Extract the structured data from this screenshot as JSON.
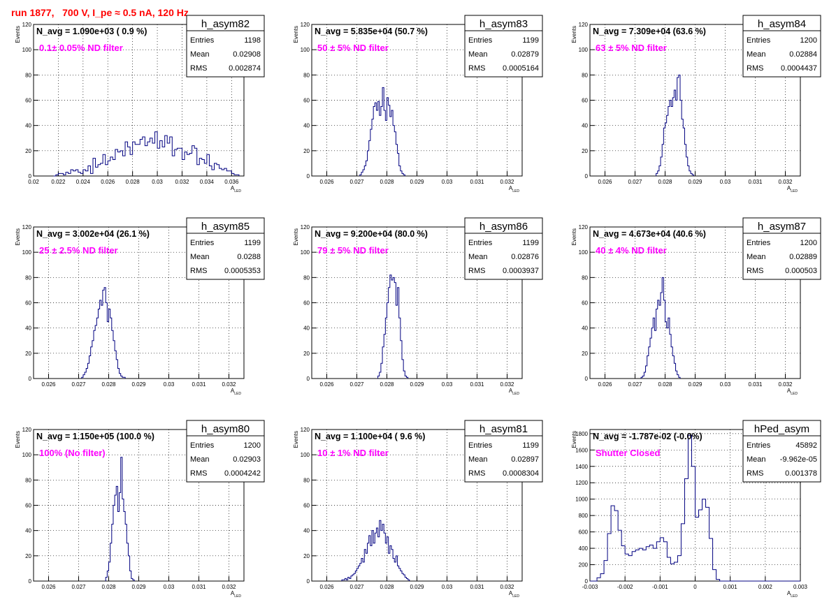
{
  "canvas_title": "run 1877,   700 V, I_pe ≈ 0.5 nA, 120 Hz",
  "colors": {
    "title": "#ff0000",
    "annotation": "#ff00ff",
    "histogram": "#000080",
    "grid": "#000000",
    "frame": "#000000"
  },
  "chart_data": [
    {
      "type": "bar",
      "hist_name": "h_asym82",
      "stats": {
        "entries_label": "Entries",
        "entries": "1198",
        "mean_label": "Mean",
        "mean": "0.02908",
        "rms_label": "RMS",
        "rms": "0.002874"
      },
      "navg_text": "N_avg = 1.090e+03 ( 0.9 %)",
      "annotation": "0.1± 0.05% ND filter",
      "ylabel": "Events",
      "xlabel_main": "A",
      "xlabel_sub": "LED",
      "xlim": [
        0.02,
        0.037
      ],
      "ylim": [
        0,
        120
      ],
      "xticks": [
        0.02,
        0.022,
        0.024,
        0.026,
        0.028,
        0.03,
        0.032,
        0.034,
        0.036
      ],
      "xtick_labels": [
        "0.02",
        "0.022",
        "0.024",
        "0.026",
        "0.028",
        "0.03",
        "0.032",
        "0.034",
        "0.036"
      ],
      "yticks": [
        0,
        20,
        40,
        60,
        80,
        100,
        120
      ],
      "ytick_labels": [
        "0",
        "20",
        "40",
        "60",
        "80",
        "100",
        "120"
      ],
      "grid": true,
      "bin_start": 0.0216,
      "bin_width": 0.0002,
      "values": [
        0,
        1,
        2,
        2,
        1,
        3,
        2,
        5,
        4,
        5,
        3,
        2,
        5,
        4,
        8,
        2,
        14,
        7,
        9,
        10,
        17,
        9,
        12,
        15,
        13,
        21,
        19,
        20,
        16,
        27,
        23,
        17,
        27,
        25,
        25,
        29,
        31,
        24,
        27,
        30,
        26,
        35,
        22,
        28,
        23,
        32,
        26,
        31,
        16,
        21,
        22,
        22,
        13,
        19,
        17,
        18,
        24,
        22,
        9,
        14,
        13,
        10,
        17,
        8,
        5,
        10,
        9,
        6,
        5,
        6,
        4,
        4,
        2,
        1,
        1
      ]
    },
    {
      "type": "bar",
      "hist_name": "h_asym83",
      "stats": {
        "entries_label": "Entries",
        "entries": "1199",
        "mean_label": "Mean",
        "mean": "0.02879",
        "rms_label": "RMS",
        "rms": "0.0005164"
      },
      "navg_text": "N_avg = 5.835e+04 (50.7 %)",
      "annotation": "50 ± 5% ND filter",
      "ylabel": "Events",
      "xlabel_main": "A",
      "xlabel_sub": "LED",
      "xlim": [
        0.0255,
        0.0325
      ],
      "ylim": [
        0,
        120
      ],
      "xticks": [
        0.026,
        0.027,
        0.028,
        0.029,
        0.03,
        0.031,
        0.032
      ],
      "xtick_labels": [
        "0.026",
        "0.027",
        "0.028",
        "0.029",
        "0.03",
        "0.031",
        "0.032"
      ],
      "yticks": [
        0,
        20,
        40,
        60,
        80,
        100,
        120
      ],
      "ytick_labels": [
        "0",
        "20",
        "40",
        "60",
        "80",
        "100",
        "120"
      ],
      "grid": true,
      "bin_start": 0.0271,
      "bin_width": 5e-05,
      "values": [
        1,
        3,
        5,
        8,
        12,
        20,
        28,
        37,
        45,
        55,
        58,
        52,
        59,
        48,
        55,
        70,
        52,
        44,
        62,
        56,
        47,
        52,
        40,
        35,
        25,
        18,
        8,
        4,
        2,
        1
      ]
    },
    {
      "type": "bar",
      "hist_name": "h_asym84",
      "stats": {
        "entries_label": "Entries",
        "entries": "1200",
        "mean_label": "Mean",
        "mean": "0.02884",
        "rms_label": "RMS",
        "rms": "0.0004437"
      },
      "navg_text": "N_avg = 7.309e+04 (63.6 %)",
      "annotation": "63 ± 5% ND filter",
      "ylabel": "Events",
      "xlabel_main": "A",
      "xlabel_sub": "LED",
      "xlim": [
        0.0255,
        0.0325
      ],
      "ylim": [
        0,
        120
      ],
      "xticks": [
        0.026,
        0.027,
        0.028,
        0.029,
        0.03,
        0.031,
        0.032
      ],
      "xtick_labels": [
        "0.026",
        "0.027",
        "0.028",
        "0.029",
        "0.03",
        "0.031",
        "0.032"
      ],
      "yticks": [
        0,
        20,
        40,
        60,
        80,
        100,
        120
      ],
      "ytick_labels": [
        "0",
        "20",
        "40",
        "60",
        "80",
        "100",
        "120"
      ],
      "grid": true,
      "bin_start": 0.0277,
      "bin_width": 5e-05,
      "values": [
        2,
        4,
        8,
        15,
        25,
        38,
        42,
        48,
        55,
        60,
        55,
        62,
        68,
        60,
        78,
        80,
        60,
        45,
        38,
        25,
        15,
        8,
        4,
        2,
        1
      ]
    },
    {
      "type": "bar",
      "hist_name": "h_asym85",
      "stats": {
        "entries_label": "Entries",
        "entries": "1199",
        "mean_label": "Mean",
        "mean": "0.0288",
        "rms_label": "RMS",
        "rms": "0.0005353"
      },
      "navg_text": "N_avg = 3.002e+04 (26.1 %)",
      "annotation": "25 ± 2.5% ND filter",
      "ylabel": "Events",
      "xlabel_main": "A",
      "xlabel_sub": "LED",
      "xlim": [
        0.0255,
        0.0325
      ],
      "ylim": [
        0,
        120
      ],
      "xticks": [
        0.026,
        0.027,
        0.028,
        0.029,
        0.03,
        0.031,
        0.032
      ],
      "xtick_labels": [
        "0.026",
        "0.027",
        "0.028",
        "0.029",
        "0.03",
        "0.031",
        "0.032"
      ],
      "yticks": [
        0,
        20,
        40,
        60,
        80,
        100,
        120
      ],
      "ytick_labels": [
        "0",
        "20",
        "40",
        "60",
        "80",
        "100",
        "120"
      ],
      "grid": true,
      "bin_start": 0.0271,
      "bin_width": 5e-05,
      "values": [
        1,
        3,
        5,
        8,
        12,
        18,
        25,
        30,
        38,
        42,
        48,
        55,
        62,
        58,
        70,
        72,
        60,
        45,
        55,
        48,
        38,
        30,
        22,
        15,
        8,
        4,
        2,
        1,
        1
      ]
    },
    {
      "type": "bar",
      "hist_name": "h_asym86",
      "stats": {
        "entries_label": "Entries",
        "entries": "1199",
        "mean_label": "Mean",
        "mean": "0.02876",
        "rms_label": "RMS",
        "rms": "0.0003937"
      },
      "navg_text": "N_avg = 9.200e+04 (80.0 %)",
      "annotation": "79 ± 5% ND filter",
      "ylabel": "Events",
      "xlabel_main": "A",
      "xlabel_sub": "LED",
      "xlim": [
        0.0255,
        0.0325
      ],
      "ylim": [
        0,
        120
      ],
      "xticks": [
        0.026,
        0.027,
        0.028,
        0.029,
        0.03,
        0.031,
        0.032
      ],
      "xtick_labels": [
        "0.026",
        "0.027",
        "0.028",
        "0.029",
        "0.03",
        "0.031",
        "0.032"
      ],
      "yticks": [
        0,
        20,
        40,
        60,
        80,
        100,
        120
      ],
      "ytick_labels": [
        "0",
        "20",
        "40",
        "60",
        "80",
        "100",
        "120"
      ],
      "grid": true,
      "bin_start": 0.0277,
      "bin_width": 5e-05,
      "values": [
        2,
        5,
        12,
        25,
        35,
        48,
        60,
        72,
        82,
        78,
        80,
        76,
        58,
        72,
        48,
        30,
        15,
        6,
        2,
        1
      ]
    },
    {
      "type": "bar",
      "hist_name": "h_asym87",
      "stats": {
        "entries_label": "Entries",
        "entries": "1200",
        "mean_label": "Mean",
        "mean": "0.02889",
        "rms_label": "RMS",
        "rms": "0.000503"
      },
      "navg_text": "N_avg = 4.673e+04 (40.6 %)",
      "annotation": "40 ± 4% ND filter",
      "ylabel": "Events",
      "xlabel_main": "A",
      "xlabel_sub": "LED",
      "xlim": [
        0.0255,
        0.0325
      ],
      "ylim": [
        0,
        120
      ],
      "xticks": [
        0.026,
        0.027,
        0.028,
        0.029,
        0.03,
        0.031,
        0.032
      ],
      "xtick_labels": [
        "0.026",
        "0.027",
        "0.028",
        "0.029",
        "0.03",
        "0.031",
        "0.032"
      ],
      "yticks": [
        0,
        20,
        40,
        60,
        80,
        100,
        120
      ],
      "ytick_labels": [
        "0",
        "20",
        "40",
        "60",
        "80",
        "100",
        "120"
      ],
      "grid": true,
      "bin_start": 0.0272,
      "bin_width": 5e-05,
      "values": [
        1,
        2,
        5,
        10,
        18,
        25,
        32,
        40,
        48,
        38,
        55,
        62,
        58,
        68,
        80,
        62,
        45,
        40,
        48,
        35,
        25,
        18,
        12,
        6,
        3,
        1
      ]
    },
    {
      "type": "bar",
      "hist_name": "h_asym80",
      "stats": {
        "entries_label": "Entries",
        "entries": "1200",
        "mean_label": "Mean",
        "mean": "0.02903",
        "rms_label": "RMS",
        "rms": "0.0004242"
      },
      "navg_text": "N_avg = 1.150e+05 (100.0 %)",
      "annotation": "100% (No filter)",
      "ylabel": "Events",
      "xlabel_main": "A",
      "xlabel_sub": "LED",
      "xlim": [
        0.0255,
        0.0325
      ],
      "ylim": [
        0,
        120
      ],
      "xticks": [
        0.026,
        0.027,
        0.028,
        0.029,
        0.03,
        0.031,
        0.032
      ],
      "xtick_labels": [
        "0.026",
        "0.027",
        "0.028",
        "0.029",
        "0.03",
        "0.031",
        "0.032"
      ],
      "yticks": [
        0,
        20,
        40,
        60,
        80,
        100,
        120
      ],
      "ytick_labels": [
        "0",
        "20",
        "40",
        "60",
        "80",
        "100",
        "120"
      ],
      "grid": true,
      "bin_start": 0.0279,
      "bin_width": 5e-05,
      "values": [
        3,
        8,
        15,
        30,
        45,
        60,
        68,
        75,
        55,
        70,
        98,
        65,
        55,
        45,
        30,
        20,
        8,
        2,
        1
      ]
    },
    {
      "type": "bar",
      "hist_name": "h_asym81",
      "stats": {
        "entries_label": "Entries",
        "entries": "1199",
        "mean_label": "Mean",
        "mean": "0.02897",
        "rms_label": "RMS",
        "rms": "0.0008304"
      },
      "navg_text": "N_avg = 1.100e+04 ( 9.6 %)",
      "annotation": "10 ± 1% ND filter",
      "ylabel": "Events",
      "xlabel_main": "A",
      "xlabel_sub": "LED",
      "xlim": [
        0.0255,
        0.0325
      ],
      "ylim": [
        0,
        120
      ],
      "xticks": [
        0.026,
        0.027,
        0.028,
        0.029,
        0.03,
        0.031,
        0.032
      ],
      "xtick_labels": [
        "0.026",
        "0.027",
        "0.028",
        "0.029",
        "0.03",
        "0.031",
        "0.032"
      ],
      "yticks": [
        0,
        20,
        40,
        60,
        80,
        100,
        120
      ],
      "ytick_labels": [
        "0",
        "20",
        "40",
        "60",
        "80",
        "100",
        "120"
      ],
      "grid": true,
      "bin_start": 0.0265,
      "bin_width": 5e-05,
      "values": [
        1,
        1,
        2,
        1,
        3,
        2,
        4,
        5,
        6,
        8,
        10,
        12,
        14,
        18,
        15,
        25,
        22,
        30,
        36,
        28,
        40,
        30,
        38,
        42,
        35,
        48,
        40,
        45,
        38,
        30,
        35,
        22,
        28,
        25,
        18,
        15,
        20,
        12,
        10,
        8,
        6,
        5,
        3,
        2,
        1
      ]
    },
    {
      "type": "bar",
      "hist_name": "hPed_asym",
      "stats": {
        "entries_label": "Entries",
        "entries": "45892",
        "mean_label": "Mean",
        "mean": "-9.962e-05",
        "rms_label": "RMS",
        "rms": "0.001378"
      },
      "navg_text": "N_avg = -1.787e-02 (-0.0%)",
      "annotation": "Shutter Closed",
      "ylabel": "Events",
      "xlabel_main": "A",
      "xlabel_sub": "LED",
      "xlim": [
        -0.003,
        0.003
      ],
      "ylim": [
        0,
        1850
      ],
      "xticks": [
        -0.003,
        -0.002,
        -0.001,
        0,
        0.001,
        0.002,
        0.003
      ],
      "xtick_labels": [
        "-0.003",
        "-0.002",
        "-0.001",
        "0",
        "0.001",
        "0.002",
        "0.003"
      ],
      "yticks": [
        0,
        200,
        400,
        600,
        800,
        1000,
        1200,
        1400,
        1600,
        1800
      ],
      "ytick_labels": [
        "0",
        "200",
        "400",
        "600",
        "800",
        "1000",
        "1200",
        "1400",
        "1600",
        "1800"
      ],
      "grid": true,
      "bin_start": -0.003,
      "bin_width": 0.0001,
      "values": [
        0,
        0,
        40,
        90,
        250,
        580,
        920,
        860,
        620,
        430,
        330,
        310,
        360,
        380,
        400,
        380,
        420,
        440,
        400,
        480,
        530,
        480,
        290,
        210,
        230,
        310,
        700,
        1250,
        1780,
        1400,
        780,
        870,
        1000,
        900,
        520,
        140,
        20,
        0,
        0,
        0,
        0,
        0,
        0,
        0,
        0,
        0,
        0,
        0,
        0,
        0,
        0,
        0,
        0,
        0,
        0,
        0,
        0,
        0,
        0,
        0
      ]
    }
  ]
}
